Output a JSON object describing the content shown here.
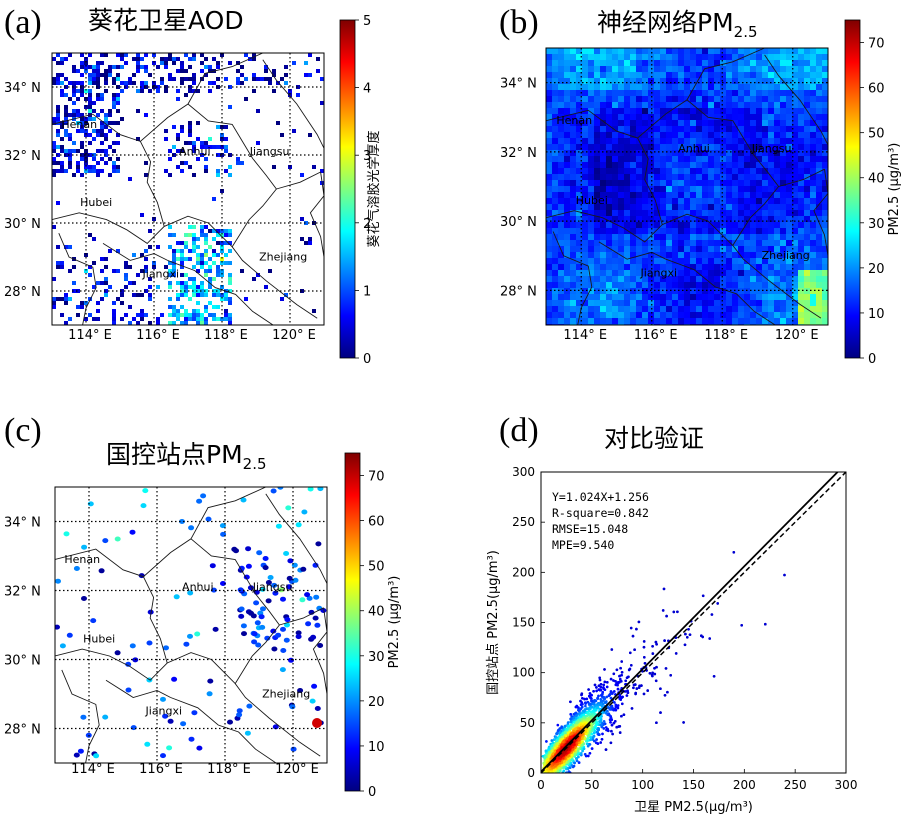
{
  "panels": [
    {
      "label": "(a)",
      "title": "葵花卫星AOD",
      "colorbar": {
        "label": "葵花气溶胶光学厚度",
        "ticks": [
          "0",
          "1",
          "2",
          "3",
          "4",
          "5"
        ],
        "min": 0,
        "max": 5
      }
    },
    {
      "label": "(b)",
      "title": "神经网络PM",
      "title_sub": "2.5",
      "colorbar": {
        "label": "PM2.5 (μg/m³)",
        "ticks": [
          "0",
          "10",
          "20",
          "30",
          "40",
          "50",
          "60",
          "70"
        ],
        "min": 0,
        "max": 75
      }
    },
    {
      "label": "(c)",
      "title": "国控站点PM",
      "title_sub": "2.5",
      "colorbar": {
        "label": "PM2.5 (μg/m³)",
        "ticks": [
          "0",
          "10",
          "20",
          "30",
          "40",
          "50",
          "60",
          "70"
        ],
        "min": 0,
        "max": 75
      }
    },
    {
      "label": "(d)",
      "title": "对比验证"
    }
  ],
  "map": {
    "lat_ticks": [
      "34°  N",
      "32°  N",
      "30°  N",
      "28°  N"
    ],
    "lon_ticks": [
      "114°  E",
      "116°  E",
      "118°  E",
      "120°  E"
    ],
    "lat_range": [
      27,
      35
    ],
    "lon_range": [
      113,
      121
    ],
    "lat_values": [
      34,
      32,
      30,
      28
    ],
    "lon_values": [
      114,
      116,
      118,
      120
    ],
    "provinces": [
      "Henan",
      "Anhui",
      "Jiangsu",
      "Hubei",
      "Zhejiang",
      "Jiangxi"
    ],
    "provinces_b": [
      "Henan",
      "Anhui",
      "Jiangsu",
      "Hubei",
      "Zhejiang",
      "Jiangxi"
    ]
  },
  "colors": {
    "cmap": [
      "#00007f",
      "#0000ff",
      "#007fff",
      "#00ffff",
      "#7fff7f",
      "#ffff00",
      "#ff7f00",
      "#ff0000",
      "#7f0000"
    ]
  },
  "chart_data": {
    "type": "scatter",
    "title": "对比验证",
    "xlabel": "卫星 PM2.5(μg/m³)",
    "ylabel": "国控站点 PM2.5(μg/m³)",
    "xlim": [
      0,
      300
    ],
    "ylim": [
      0,
      300
    ],
    "xticks": [
      "0",
      "50",
      "100",
      "150",
      "200",
      "250",
      "300"
    ],
    "yticks": [
      "0",
      "50",
      "100",
      "150",
      "200",
      "250",
      "300"
    ],
    "fit": {
      "slope": 1.024,
      "intercept": 1.256
    },
    "annotations": [
      "Y=1.024X+1.256",
      "R-square=0.842",
      "RMSE=15.048",
      "MPE=9.540"
    ],
    "reference_line": "1:1"
  }
}
